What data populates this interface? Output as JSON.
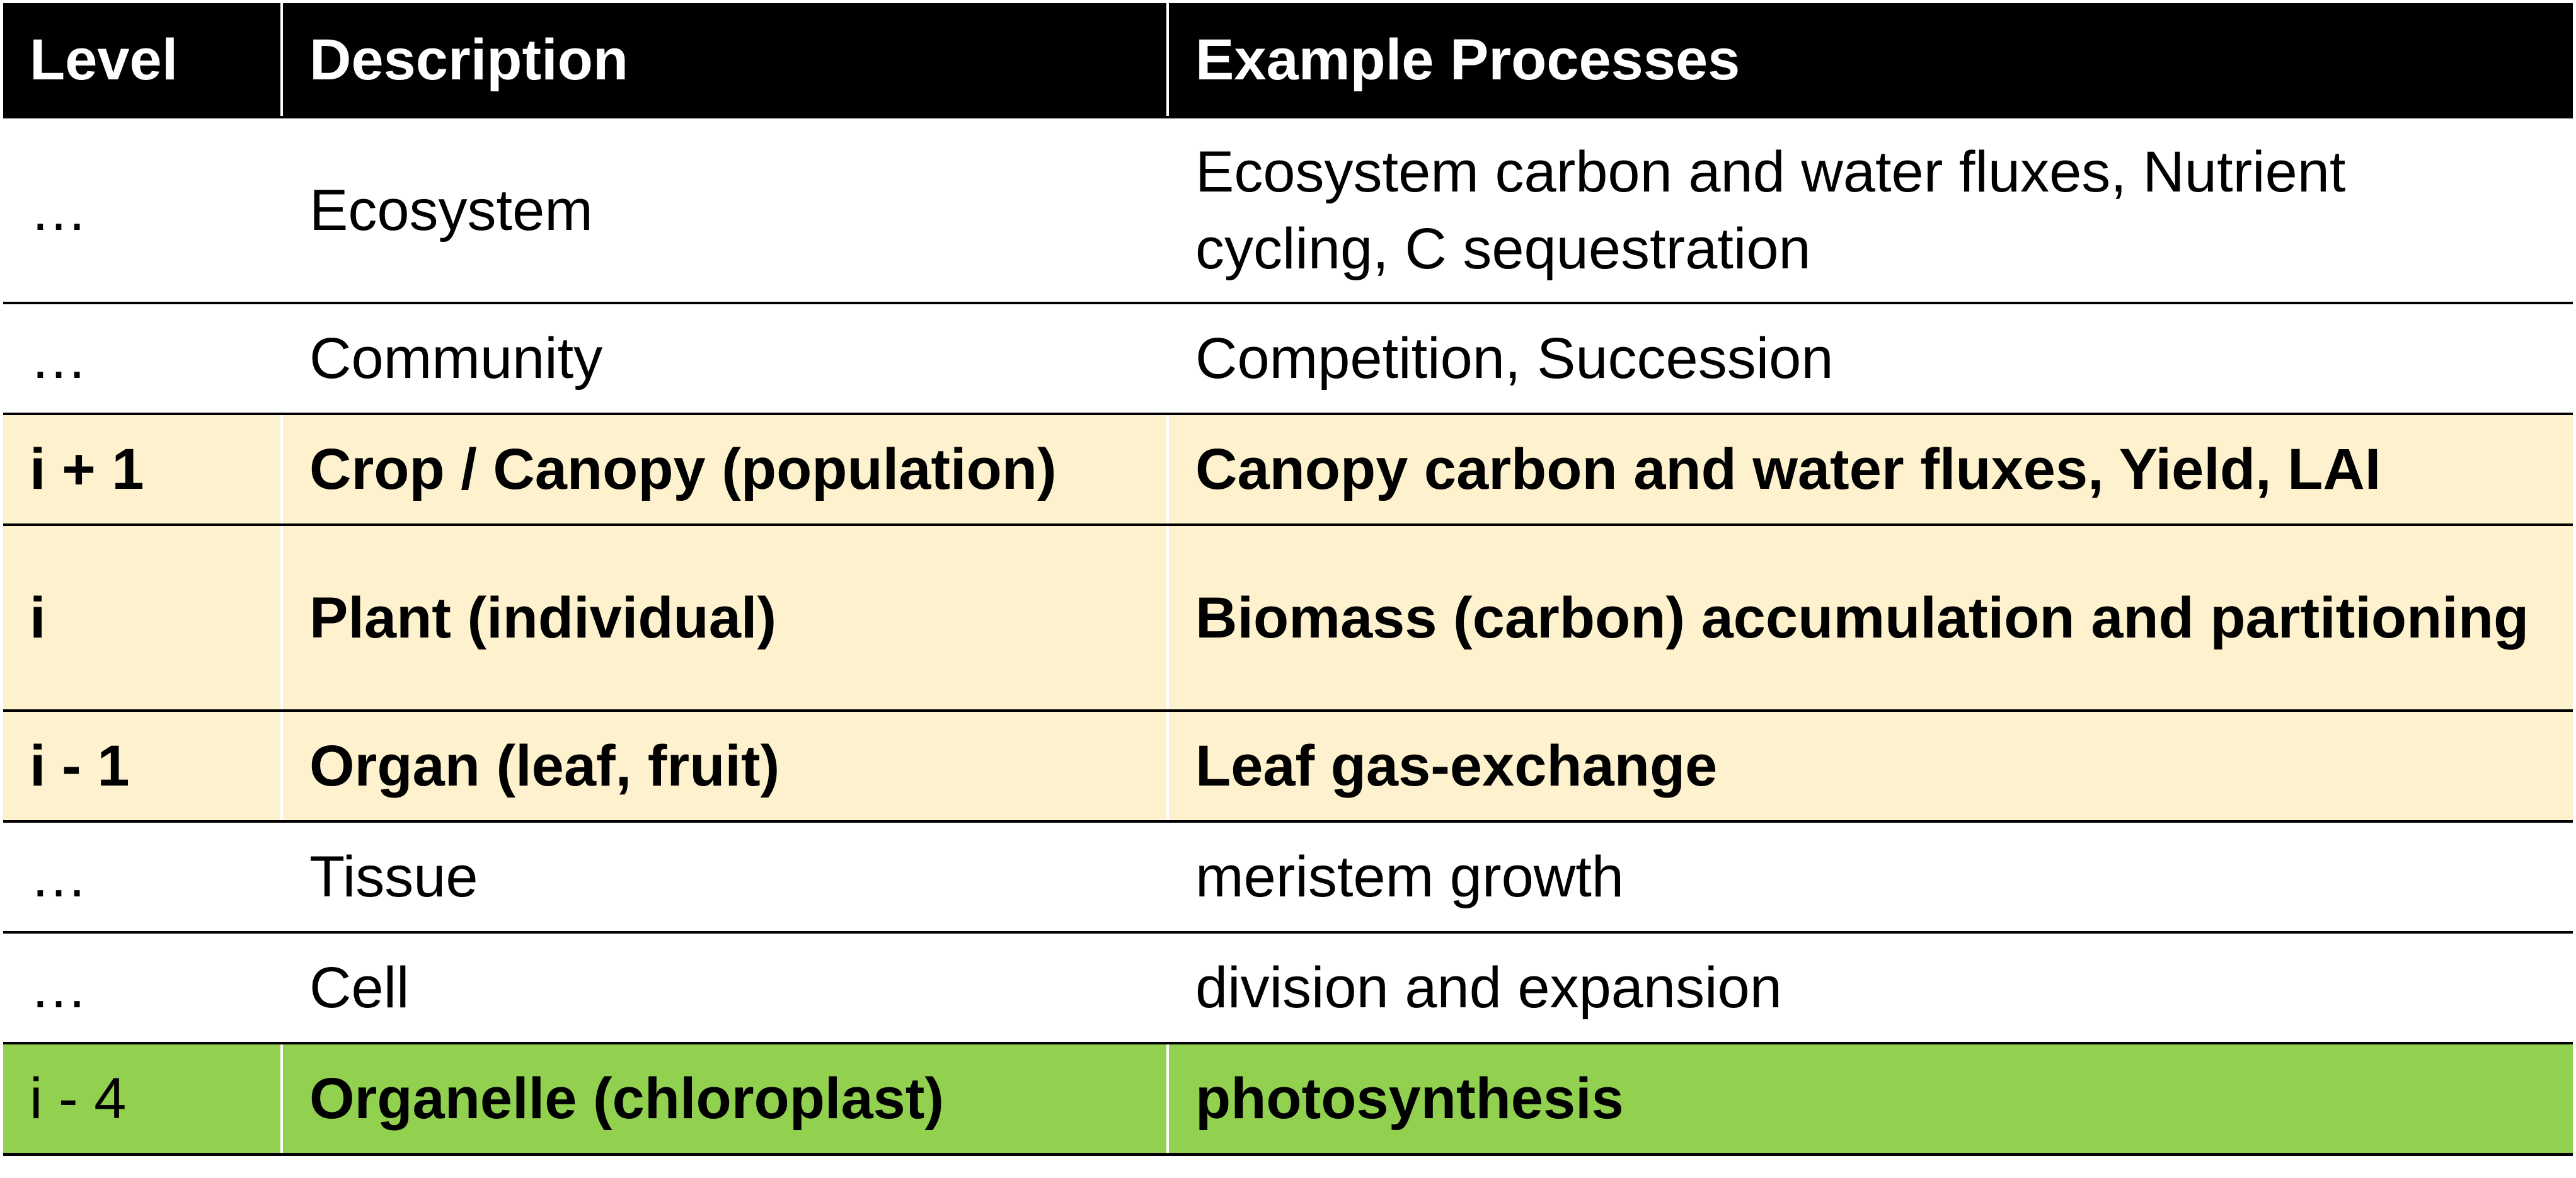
{
  "table": {
    "headers": [
      "Level",
      "Description",
      "Example Processes"
    ],
    "rows": [
      {
        "level": "…",
        "description": "Ecosystem",
        "processes": "Ecosystem carbon and water fluxes, Nutrient cycling, C sequestration"
      },
      {
        "level": "…",
        "description": "Community",
        "processes": "Competition, Succession"
      },
      {
        "level": "i + 1",
        "description": "Crop / Canopy (population)",
        "processes": "Canopy carbon and water fluxes, Yield, LAI"
      },
      {
        "level": "i",
        "description": "Plant (individual)",
        "processes": "Biomass (carbon) accumulation and partitioning"
      },
      {
        "level": "i - 1",
        "description": "Organ (leaf, fruit)",
        "processes": "Leaf gas-exchange"
      },
      {
        "level": "…",
        "description": "Tissue",
        "processes": "meristem growth"
      },
      {
        "level": "…",
        "description": "Cell",
        "processes": "division and expansion"
      },
      {
        "level": "i - 4",
        "description": "Organelle (chloroplast)",
        "processes": "photosynthesis"
      }
    ]
  },
  "colors": {
    "header_bg": "#000000",
    "header_text": "#ffffff",
    "highlight_yellow": "#fdf2cd",
    "highlight_green": "#92d050",
    "border": "#000000"
  }
}
